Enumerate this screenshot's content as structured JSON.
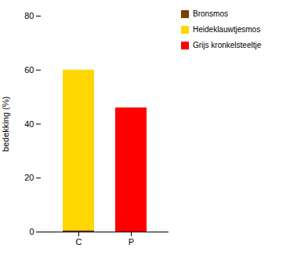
{
  "chart_data": {
    "type": "bar",
    "stacked": true,
    "categories": [
      "C",
      "P"
    ],
    "series": [
      {
        "name": "Bronsmos",
        "color": "#7B3F00",
        "values": [
          0.5,
          0
        ]
      },
      {
        "name": "Heideklauwtjesmos",
        "color": "#FFD700",
        "values": [
          59.5,
          0
        ]
      },
      {
        "name": "Grijs kronkelsteeltje",
        "color": "#FF0000",
        "values": [
          0,
          46
        ]
      }
    ],
    "ylabel": "bedekking (%)",
    "ylim": [
      0,
      80
    ],
    "yticks": [
      0,
      20,
      40,
      60,
      80
    ],
    "legend": "right"
  }
}
